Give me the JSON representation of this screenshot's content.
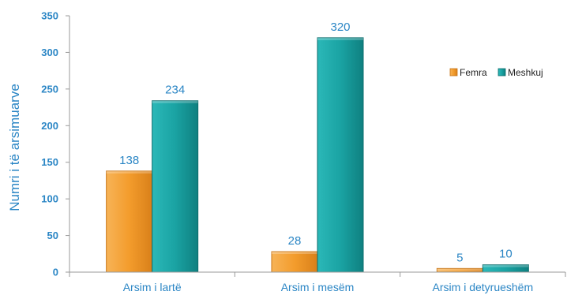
{
  "chart_data": {
    "type": "bar",
    "ylabel": "Numri i të arsimuarve",
    "ylim": [
      0,
      350
    ],
    "yticks": [
      0,
      50,
      100,
      150,
      200,
      250,
      300,
      350
    ],
    "categories": [
      "Arsim i lartë",
      "Arsim i mesëm",
      "Arsim i detyrueshëm"
    ],
    "series": [
      {
        "name": "Femra",
        "values": [
          138,
          28,
          5
        ],
        "color": "#f39c2c"
      },
      {
        "name": "Meshkuj",
        "values": [
          234,
          320,
          10
        ],
        "color": "#1aa3a3"
      }
    ],
    "legend_position": "right",
    "grid": false
  }
}
